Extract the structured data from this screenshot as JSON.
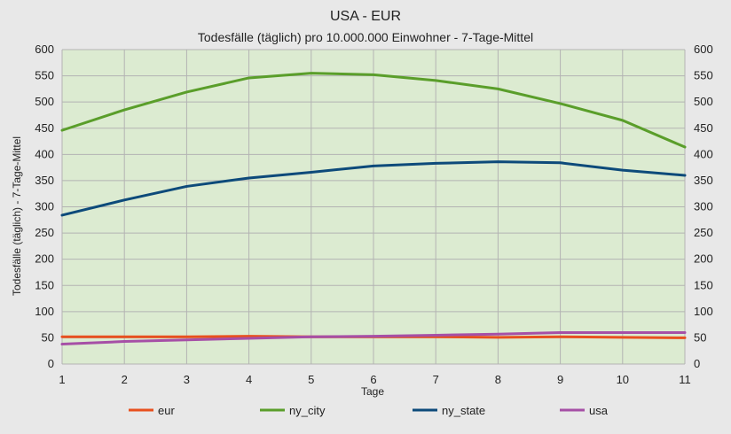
{
  "chart_data": {
    "type": "line",
    "title": "USA - EUR",
    "subtitle": "Todesfälle (täglich) pro 10.000.000 Einwohner - 7-Tage-Mittel",
    "xlabel": "Tage",
    "ylabel": "Todesfälle (täglich) - 7-Tage-Mittel",
    "x": [
      1,
      2,
      3,
      4,
      5,
      6,
      7,
      8,
      9,
      10,
      11
    ],
    "ylim": [
      0,
      600
    ],
    "yticks": [
      0,
      50,
      100,
      150,
      200,
      250,
      300,
      350,
      400,
      450,
      500,
      550,
      600
    ],
    "grid": true,
    "legend_position": "bottom",
    "series": [
      {
        "name": "eur",
        "color": "#e8501e",
        "values": [
          52,
          52,
          52,
          53,
          52,
          52,
          52,
          51,
          52,
          51,
          50
        ]
      },
      {
        "name": "ny_city",
        "color": "#5a9e2a",
        "values": [
          446,
          485,
          519,
          546,
          555,
          552,
          541,
          525,
          497,
          465,
          414
        ]
      },
      {
        "name": "ny_state",
        "color": "#0d4a7a",
        "values": [
          284,
          313,
          339,
          355,
          366,
          378,
          383,
          386,
          384,
          370,
          360
        ]
      },
      {
        "name": "usa",
        "color": "#a64fa6",
        "values": [
          38,
          43,
          46,
          49,
          52,
          53,
          55,
          57,
          60,
          60,
          60
        ]
      }
    ]
  }
}
